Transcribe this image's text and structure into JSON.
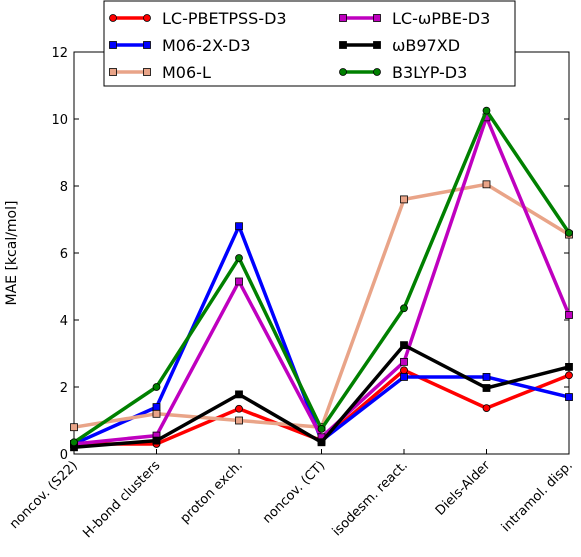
{
  "chart_data": {
    "type": "line",
    "ylabel": "MAE [kcal/mol]",
    "xlabel": "",
    "ylim": [
      0,
      12
    ],
    "yticks": [
      0,
      2,
      4,
      6,
      8,
      10,
      12
    ],
    "grid": false,
    "legend_position": "top",
    "categories": [
      "noncov. (S22)",
      "H-bond clusters",
      "proton exch.",
      "noncov. (CT)",
      "isodesm. react.",
      "Diels-Alder",
      "intramol. disp."
    ],
    "series": [
      {
        "name": "LC-PBETPSS-D3",
        "color": "#ff0000",
        "marker": "circle",
        "values": [
          0.3,
          0.3,
          1.35,
          0.4,
          2.5,
          1.37,
          2.35
        ]
      },
      {
        "name": "M06-2X-D3",
        "color": "#0000ff",
        "marker": "square",
        "values": [
          0.3,
          1.4,
          6.8,
          0.4,
          2.3,
          2.3,
          1.7
        ]
      },
      {
        "name": "M06-L",
        "color": "#e9a488",
        "marker": "square",
        "values": [
          0.8,
          1.2,
          1.0,
          0.8,
          7.6,
          8.05,
          6.55
        ]
      },
      {
        "name": "LC-ωPBE-D3",
        "color": "#bf00bf",
        "marker": "square",
        "values": [
          0.3,
          0.55,
          5.15,
          0.5,
          2.75,
          10.05,
          4.15
        ]
      },
      {
        "name": "ωB97XD",
        "color": "#000000",
        "marker": "square",
        "values": [
          0.2,
          0.4,
          1.78,
          0.35,
          3.25,
          1.97,
          2.6
        ]
      },
      {
        "name": "B3LYP-D3",
        "color": "#008000",
        "marker": "circle",
        "values": [
          0.35,
          2.0,
          5.85,
          0.75,
          4.35,
          10.25,
          6.6
        ]
      }
    ]
  }
}
